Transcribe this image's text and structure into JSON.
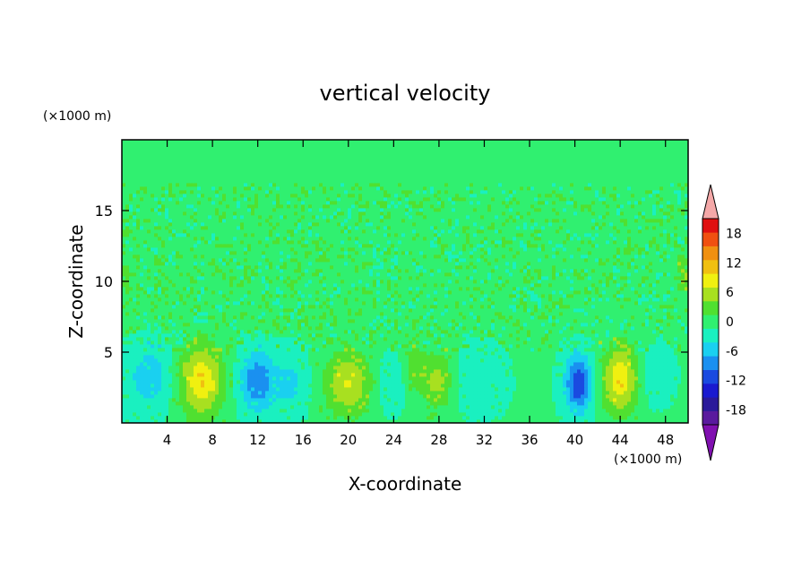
{
  "chart_data": {
    "type": "heatmap",
    "title": "vertical velocity",
    "xlabel": "X-coordinate",
    "ylabel": "Z-coordinate",
    "x_scale_label": "(×1000 m)",
    "y_scale_label": "(×1000 m)",
    "xlim": [
      0,
      50
    ],
    "ylim": [
      0,
      20
    ],
    "x_ticks": [
      4,
      8,
      12,
      16,
      20,
      24,
      28,
      32,
      36,
      40,
      44,
      48
    ],
    "y_ticks": [
      5,
      10,
      15
    ],
    "colorbar": {
      "levels": [
        -21,
        -18,
        -15,
        -12,
        -9,
        -6,
        -3,
        0,
        3,
        6,
        9,
        12,
        15,
        18,
        21
      ],
      "tick_labels": [
        18,
        12,
        6,
        0,
        -6,
        -12,
        -18
      ],
      "colors": [
        "#5a1a9e",
        "#2a1a9a",
        "#1a1ad0",
        "#1a4ae0",
        "#1a90f0",
        "#1ad0f0",
        "#1af0c0",
        "#30f070",
        "#50e030",
        "#a8e020",
        "#f0f010",
        "#f0c010",
        "#f09010",
        "#f05010",
        "#e01010"
      ],
      "under_color": "#8010b0",
      "over_color": "#f4a8a8"
    },
    "field": {
      "background_upper": 1.5,
      "background_lower": 0.5,
      "cells": [
        {
          "x": 2.5,
          "z": 3.3,
          "peak": -5,
          "sx": 1.5,
          "sz": 1.6
        },
        {
          "x": 7.0,
          "z": 3.0,
          "peak": 11,
          "sx": 1.4,
          "sz": 1.9
        },
        {
          "x": 12.0,
          "z": 3.0,
          "peak": -9,
          "sx": 1.1,
          "sz": 1.5
        },
        {
          "x": 15.0,
          "z": 2.8,
          "peak": -4,
          "sx": 1.0,
          "sz": 1.4
        },
        {
          "x": 20.0,
          "z": 2.8,
          "peak": 9,
          "sx": 1.5,
          "sz": 1.6
        },
        {
          "x": 23.5,
          "z": 2.8,
          "peak": -3,
          "sx": 0.9,
          "sz": 1.2
        },
        {
          "x": 25.8,
          "z": 4.2,
          "peak": 4,
          "sx": 0.6,
          "sz": 1.4
        },
        {
          "x": 27.8,
          "z": 3.0,
          "peak": 7,
          "sx": 1.0,
          "sz": 1.4
        },
        {
          "x": 31.5,
          "z": 3.0,
          "peak": -3,
          "sx": 1.4,
          "sz": 1.4
        },
        {
          "x": 40.3,
          "z": 2.8,
          "peak": -12,
          "sx": 0.8,
          "sz": 1.4
        },
        {
          "x": 44.0,
          "z": 3.1,
          "peak": 11,
          "sx": 1.1,
          "sz": 1.8
        },
        {
          "x": 47.0,
          "z": 3.3,
          "peak": -3,
          "sx": 1.0,
          "sz": 1.2
        },
        {
          "x": 49.5,
          "z": 10.5,
          "peak": 4,
          "sx": 0.5,
          "sz": 1.5
        },
        {
          "x": 0.3,
          "z": 10.3,
          "peak": 3,
          "sx": 0.5,
          "sz": 1.5
        }
      ]
    }
  }
}
